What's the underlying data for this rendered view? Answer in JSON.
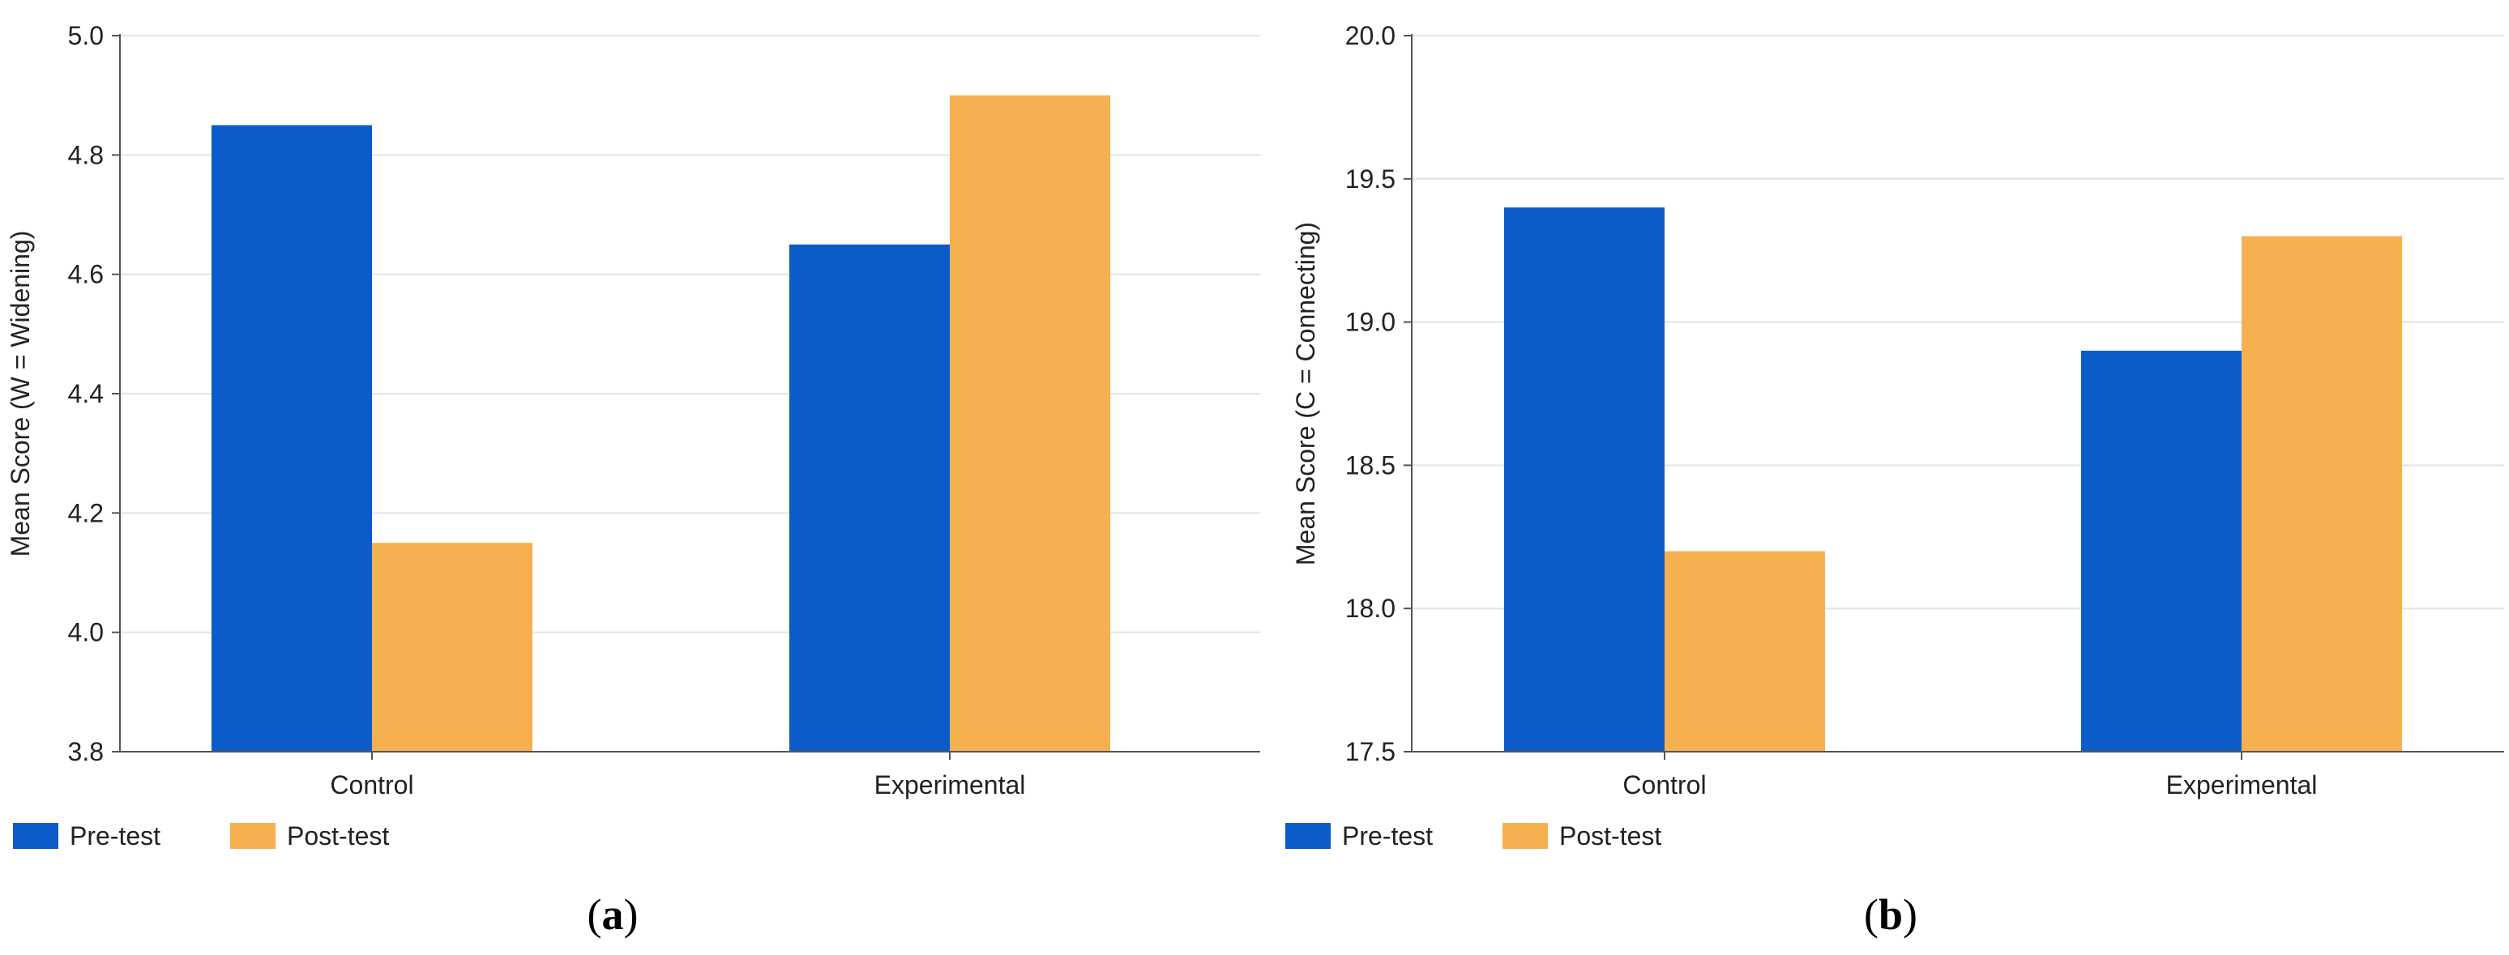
{
  "chart_data": [
    {
      "type": "bar",
      "panel": "(a)",
      "panel_letter": "a",
      "categories": [
        "Control",
        "Experimental"
      ],
      "series": [
        {
          "name": "Pre-test",
          "color": "#0b5bc9",
          "values": [
            4.85,
            4.65
          ]
        },
        {
          "name": "Post-test",
          "color": "#f7b04f",
          "values": [
            4.15,
            4.9
          ]
        }
      ],
      "ylabel": "Mean Score (W = Widening)",
      "xlabel": "",
      "ylim": [
        3.8,
        5.0
      ],
      "yticks": [
        3.8,
        4.0,
        4.2,
        4.4,
        4.6,
        4.8,
        5.0
      ],
      "ytick_labels": [
        "3.8",
        "4.0",
        "4.2",
        "4.4",
        "4.6",
        "4.8",
        "5.0"
      ],
      "grid": true,
      "legend_position": "bottom-left"
    },
    {
      "type": "bar",
      "panel": "(b)",
      "panel_letter": "b",
      "categories": [
        "Control",
        "Experimental"
      ],
      "series": [
        {
          "name": "Pre-test",
          "color": "#0b5bc9",
          "values": [
            19.4,
            18.9
          ]
        },
        {
          "name": "Post-test",
          "color": "#f7b04f",
          "values": [
            18.2,
            19.3
          ]
        }
      ],
      "ylabel": "Mean Score (C = Connecting)",
      "xlabel": "",
      "ylim": [
        17.5,
        20.0
      ],
      "yticks": [
        17.5,
        18.0,
        18.5,
        19.0,
        19.5,
        20.0
      ],
      "ytick_labels": [
        "17.5",
        "18.0",
        "18.5",
        "19.0",
        "19.5",
        "20.0"
      ],
      "grid": true,
      "legend_position": "bottom-left"
    }
  ]
}
